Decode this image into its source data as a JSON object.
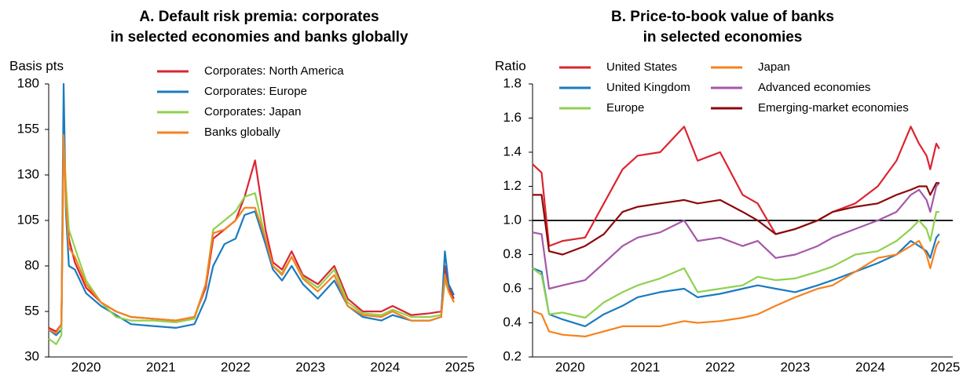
{
  "chart_data": [
    {
      "type": "line",
      "title": [
        "A. Default risk premia: corporates",
        "in selected economies and banks globally"
      ],
      "y_label": "Basis pts",
      "x": [
        2020.0,
        2020.1,
        2020.17,
        2020.2,
        2020.23,
        2020.27,
        2020.35,
        2020.5,
        2020.7,
        2020.9,
        2021.1,
        2021.4,
        2021.7,
        2021.95,
        2022.1,
        2022.2,
        2022.35,
        2022.5,
        2022.62,
        2022.76,
        2022.9,
        2023.0,
        2023.12,
        2023.25,
        2023.4,
        2023.6,
        2023.82,
        2024.0,
        2024.2,
        2024.45,
        2024.6,
        2024.85,
        2025.1,
        2025.25,
        2025.3,
        2025.35,
        2025.42
      ],
      "xlim": [
        2020.0,
        2025.6
      ],
      "xticks": [
        {
          "value": 2020.5,
          "label": "2020"
        },
        {
          "value": 2021.5,
          "label": "2021"
        },
        {
          "value": 2022.5,
          "label": "2022"
        },
        {
          "value": 2023.5,
          "label": "2023"
        },
        {
          "value": 2024.5,
          "label": "2024"
        },
        {
          "value": 2025.5,
          "label": "2025"
        }
      ],
      "ylim": [
        30,
        180
      ],
      "yticks": [
        30,
        55,
        80,
        105,
        130,
        155,
        180
      ],
      "series": [
        {
          "name": "Corporates: North America",
          "color": "#dc2430",
          "values": [
            46,
            44,
            48,
            150,
            120,
            95,
            82,
            68,
            60,
            55,
            52,
            51,
            50,
            52,
            68,
            95,
            100,
            105,
            118,
            138,
            100,
            82,
            78,
            88,
            75,
            70,
            80,
            62,
            55,
            55,
            58,
            53,
            54,
            55,
            80,
            68,
            62
          ]
        },
        {
          "name": "Corporates: Europe",
          "color": "#1a7bc0",
          "values": [
            45,
            42,
            45,
            180,
            110,
            80,
            78,
            65,
            58,
            53,
            48,
            47,
            46,
            48,
            62,
            80,
            92,
            95,
            108,
            110,
            92,
            78,
            72,
            80,
            70,
            62,
            72,
            58,
            52,
            50,
            53,
            50,
            50,
            52,
            88,
            70,
            64
          ]
        },
        {
          "name": "Corporates: Japan",
          "color": "#8fd14f",
          "values": [
            40,
            37,
            42,
            150,
            125,
            100,
            90,
            72,
            60,
            52,
            50,
            50,
            49,
            51,
            70,
            100,
            105,
            110,
            118,
            120,
            95,
            80,
            76,
            85,
            74,
            68,
            78,
            60,
            54,
            53,
            56,
            52,
            52,
            53,
            72,
            66,
            60
          ]
        },
        {
          "name": "Banks globally",
          "color": "#f5821f",
          "values": [
            45,
            43,
            48,
            152,
            115,
            90,
            85,
            70,
            60,
            55,
            52,
            51,
            50,
            52,
            70,
            98,
            100,
            105,
            112,
            112,
            95,
            80,
            75,
            85,
            73,
            66,
            75,
            58,
            53,
            52,
            55,
            50,
            50,
            52,
            75,
            66,
            60
          ]
        }
      ]
    },
    {
      "type": "line",
      "title": [
        "B. Price-to-book value of banks",
        "in selected economies"
      ],
      "y_label": "Ratio",
      "x": [
        2020.0,
        2020.12,
        2020.22,
        2020.4,
        2020.7,
        2020.95,
        2021.2,
        2021.4,
        2021.7,
        2022.02,
        2022.2,
        2022.5,
        2022.8,
        2023.0,
        2023.24,
        2023.5,
        2023.8,
        2024.0,
        2024.3,
        2024.6,
        2024.85,
        2025.04,
        2025.15,
        2025.25,
        2025.3,
        2025.38,
        2025.42
      ],
      "xlim": [
        2020.0,
        2025.6
      ],
      "xticks": [
        {
          "value": 2020.5,
          "label": "2020"
        },
        {
          "value": 2021.5,
          "label": "2021"
        },
        {
          "value": 2022.5,
          "label": "2022"
        },
        {
          "value": 2023.5,
          "label": "2023"
        },
        {
          "value": 2024.5,
          "label": "2024"
        },
        {
          "value": 2025.5,
          "label": "2025"
        }
      ],
      "ylim": [
        0.2,
        1.8
      ],
      "yticks": [
        0.2,
        0.4,
        0.6,
        0.8,
        {
          "value": 1,
          "label": "1.0"
        },
        1.2,
        1.4,
        1.6,
        1.8
      ],
      "reference_line": 1,
      "series": [
        {
          "name": "United States",
          "color": "#dc2430",
          "values": [
            1.33,
            1.28,
            0.85,
            0.88,
            0.9,
            1.1,
            1.3,
            1.38,
            1.4,
            1.55,
            1.35,
            1.4,
            1.15,
            1.1,
            0.92,
            0.95,
            1.0,
            1.05,
            1.1,
            1.2,
            1.35,
            1.55,
            1.45,
            1.38,
            1.3,
            1.45,
            1.42
          ]
        },
        {
          "name": "United Kingdom",
          "color": "#1a7bc0",
          "values": [
            0.72,
            0.7,
            0.45,
            0.42,
            0.38,
            0.45,
            0.5,
            0.55,
            0.58,
            0.6,
            0.55,
            0.57,
            0.6,
            0.62,
            0.6,
            0.58,
            0.62,
            0.65,
            0.7,
            0.75,
            0.8,
            0.88,
            0.85,
            0.82,
            0.78,
            0.9,
            0.92
          ]
        },
        {
          "name": "Europe",
          "color": "#8fd14f",
          "values": [
            0.72,
            0.68,
            0.45,
            0.46,
            0.43,
            0.52,
            0.58,
            0.62,
            0.66,
            0.72,
            0.58,
            0.6,
            0.62,
            0.67,
            0.65,
            0.66,
            0.7,
            0.73,
            0.8,
            0.82,
            0.88,
            0.95,
            1.0,
            0.95,
            0.88,
            1.05,
            1.05
          ]
        },
        {
          "name": "Japan",
          "color": "#f5821f",
          "values": [
            0.47,
            0.45,
            0.35,
            0.33,
            0.32,
            0.35,
            0.38,
            0.38,
            0.38,
            0.41,
            0.4,
            0.41,
            0.43,
            0.45,
            0.5,
            0.55,
            0.6,
            0.62,
            0.7,
            0.78,
            0.8,
            0.85,
            0.88,
            0.8,
            0.72,
            0.85,
            0.88
          ]
        },
        {
          "name": "Advanced economies",
          "color": "#a557a9",
          "values": [
            0.93,
            0.92,
            0.6,
            0.62,
            0.65,
            0.75,
            0.85,
            0.9,
            0.93,
            1.0,
            0.88,
            0.9,
            0.85,
            0.88,
            0.78,
            0.8,
            0.85,
            0.9,
            0.95,
            1.0,
            1.05,
            1.15,
            1.18,
            1.12,
            1.05,
            1.2,
            1.22
          ]
        },
        {
          "name": "Emerging-market economies",
          "color": "#8b0a0a",
          "values": [
            1.15,
            1.15,
            0.82,
            0.8,
            0.85,
            0.92,
            1.05,
            1.08,
            1.1,
            1.12,
            1.1,
            1.12,
            1.05,
            1.0,
            0.92,
            0.95,
            1.0,
            1.05,
            1.08,
            1.1,
            1.15,
            1.18,
            1.2,
            1.2,
            1.15,
            1.22,
            1.22
          ]
        }
      ]
    }
  ]
}
